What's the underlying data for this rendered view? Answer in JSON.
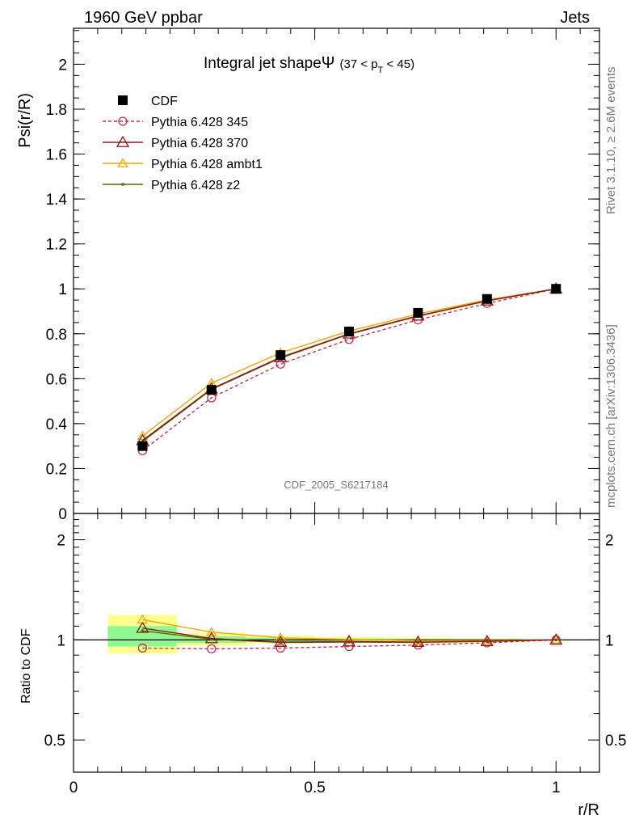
{
  "header": {
    "left": "1960 GeV ppbar",
    "right": "Jets"
  },
  "side": {
    "rivet": "Rivet 3.1.10, ≥ 2.6M events",
    "mcplots": "mcplots.cern.ch [arXiv:1306.3436]"
  },
  "colors": {
    "cdf": "#000000",
    "p345": "#c0304a",
    "p370": "#8b1a1a",
    "ambt1": "#f0a500",
    "z2": "#5a6a00",
    "band_green": "#90f890",
    "band_yellow": "#ffff90"
  },
  "chart_data": [
    {
      "type": "line",
      "title_main": "Integral jet shape",
      "title_symbol": "Ψ",
      "title_range": "(37 < p",
      "title_sub": "T",
      "title_range_end": " < 45)",
      "ylabel": "Psi(r/R)",
      "watermark": "CDF_2005_S6217184",
      "xlim": [
        0,
        1.09
      ],
      "ylim": [
        0,
        2.16
      ],
      "yticks": [
        0,
        0.2,
        0.4,
        0.6,
        0.8,
        1,
        1.2,
        1.4,
        1.6,
        1.8,
        2
      ],
      "ytick_labels": [
        "0",
        "0.2",
        "0.4",
        "0.6",
        "0.8",
        "1",
        "1.2",
        "1.4",
        "1.6",
        "1.8",
        "2"
      ],
      "x": [
        0.143,
        0.286,
        0.429,
        0.571,
        0.714,
        0.857,
        1.0
      ],
      "series": [
        {
          "name": "CDF",
          "key": "cdf",
          "values": [
            0.3,
            0.55,
            0.705,
            0.81,
            0.893,
            0.955,
            1.0
          ]
        },
        {
          "name": "Pythia 6.428 345",
          "key": "p345",
          "values": [
            0.28,
            0.515,
            0.665,
            0.775,
            0.862,
            0.935,
            1.0
          ]
        },
        {
          "name": "Pythia 6.428 370",
          "key": "p370",
          "values": [
            0.325,
            0.555,
            0.695,
            0.8,
            0.88,
            0.947,
            1.0
          ]
        },
        {
          "name": "Pythia 6.428 ambt1",
          "key": "ambt1",
          "values": [
            0.345,
            0.58,
            0.715,
            0.812,
            0.888,
            0.951,
            1.0
          ]
        },
        {
          "name": "Pythia 6.428 z2",
          "key": "z2",
          "values": [
            0.32,
            0.552,
            0.692,
            0.798,
            0.878,
            0.946,
            1.0
          ]
        }
      ]
    },
    {
      "type": "line",
      "ylabel": "Ratio to CDF",
      "xlabel": "r/R",
      "xlim": [
        0,
        1.09
      ],
      "ylim": [
        0.4,
        2.4
      ],
      "yscale": "log",
      "yticks": [
        0.5,
        1,
        2
      ],
      "ytick_labels": [
        "0.5",
        "1",
        "2"
      ],
      "xticks": [
        0,
        0.5,
        1
      ],
      "xtick_labels": [
        "0",
        "0.5",
        "1"
      ],
      "x": [
        0.143,
        0.286,
        0.429,
        0.571,
        0.714,
        0.857,
        1.0
      ],
      "bands": [
        {
          "x0": 0.071,
          "x1": 0.214,
          "yellow": [
            0.91,
            1.19
          ],
          "green": [
            0.955,
            1.1
          ]
        },
        {
          "x0": 0.214,
          "x1": 0.357,
          "yellow": [
            0.96,
            1.05
          ],
          "green": [
            0.98,
            1.025
          ]
        },
        {
          "x0": 0.357,
          "x1": 0.5,
          "yellow": [
            0.975,
            1.03
          ],
          "green": [
            0.988,
            1.015
          ]
        },
        {
          "x0": 0.5,
          "x1": 0.643,
          "yellow": [
            0.985,
            1.02
          ],
          "green": [
            0.992,
            1.01
          ]
        },
        {
          "x0": 0.643,
          "x1": 0.786,
          "yellow": [
            0.99,
            1.015
          ],
          "green": [
            0.995,
            1.007
          ]
        },
        {
          "x0": 0.786,
          "x1": 0.929,
          "yellow": [
            0.993,
            1.01
          ],
          "green": [
            0.997,
            1.005
          ]
        },
        {
          "x0": 0.929,
          "x1": 1.071,
          "yellow": [
            0.997,
            1.004
          ],
          "green": [
            0.999,
            1.002
          ]
        }
      ],
      "series": [
        {
          "name": "Pythia 6.428 345",
          "key": "p345",
          "values": [
            0.945,
            0.94,
            0.945,
            0.955,
            0.965,
            0.98,
            1.0
          ]
        },
        {
          "name": "Pythia 6.428 370",
          "key": "p370",
          "values": [
            1.085,
            1.01,
            0.985,
            0.988,
            0.985,
            0.99,
            1.0
          ]
        },
        {
          "name": "Pythia 6.428 ambt1",
          "key": "ambt1",
          "values": [
            1.15,
            1.055,
            1.015,
            1.002,
            0.995,
            0.995,
            1.0
          ]
        },
        {
          "name": "Pythia 6.428 z2",
          "key": "z2",
          "values": [
            1.065,
            1.005,
            0.982,
            0.985,
            0.983,
            0.99,
            1.0
          ]
        }
      ]
    }
  ]
}
